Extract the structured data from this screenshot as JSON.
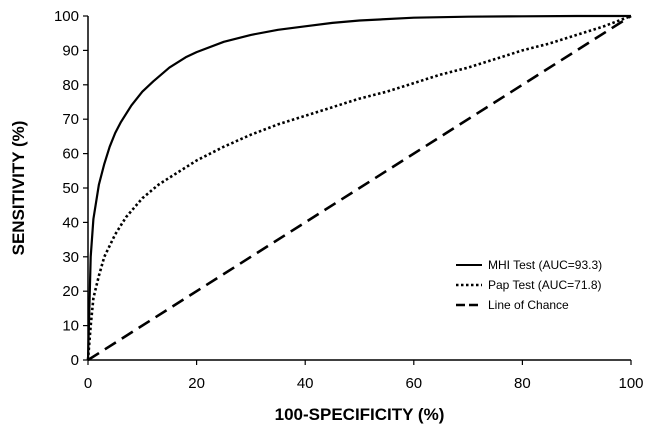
{
  "chart_data": {
    "type": "line",
    "title": "",
    "xlabel": "100-SPECIFICITY (%)",
    "ylabel": "SENSITIVITY (%)",
    "xlim": [
      0,
      100
    ],
    "ylim": [
      0,
      100
    ],
    "x_ticks": [
      0,
      20,
      40,
      60,
      80,
      100
    ],
    "y_ticks": [
      0,
      10,
      20,
      30,
      40,
      50,
      60,
      70,
      80,
      90,
      100
    ],
    "grid": false,
    "legend_position": "bottom-right",
    "series": [
      {
        "name": "MHI Test (AUC=93.3)",
        "line_style": "solid",
        "color": "#000000",
        "x": [
          0,
          0.5,
          1,
          2,
          3,
          4,
          5,
          6,
          8,
          10,
          12,
          15,
          18,
          20,
          25,
          30,
          35,
          40,
          45,
          50,
          60,
          70,
          80,
          90,
          100
        ],
        "y": [
          0,
          30,
          41,
          51,
          57,
          62,
          66,
          69,
          74,
          78,
          81,
          85,
          88,
          89.5,
          92.5,
          94.5,
          96,
          97,
          98,
          98.7,
          99.5,
          99.8,
          99.9,
          100,
          100
        ]
      },
      {
        "name": "Pap Test (AUC=71.8)",
        "line_style": "dotted",
        "color": "#000000",
        "x": [
          0,
          0.5,
          1,
          2,
          3,
          5,
          7,
          10,
          13,
          15,
          20,
          25,
          30,
          35,
          40,
          45,
          50,
          55,
          60,
          65,
          70,
          75,
          80,
          85,
          90,
          95,
          100
        ],
        "y": [
          0,
          10,
          18,
          24.5,
          30,
          36.5,
          41.5,
          47,
          51,
          53,
          58,
          62,
          65.5,
          68.5,
          71,
          73.5,
          76,
          78,
          80.5,
          83,
          85,
          87.5,
          90,
          92,
          94.5,
          97,
          100
        ]
      },
      {
        "name": "Line of Chance",
        "line_style": "dashed",
        "color": "#000000",
        "x": [
          0,
          100
        ],
        "y": [
          0,
          100
        ]
      }
    ]
  }
}
